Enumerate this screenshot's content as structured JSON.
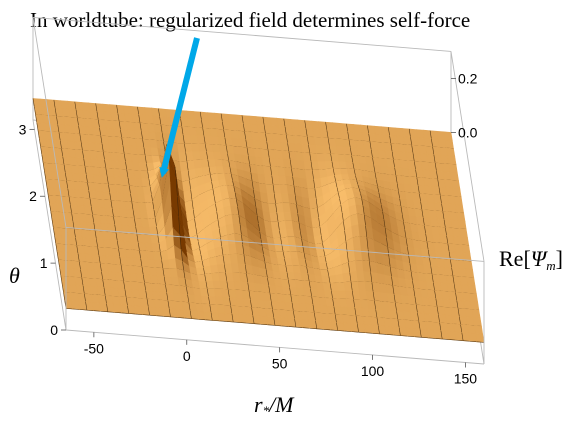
{
  "chart_data": {
    "type": "surface3d",
    "title": "",
    "annotation": "In worldtube: regularized field determines self-force",
    "xlabel": {
      "main": "r",
      "sub": "*",
      "rest": "/M"
    },
    "ylabel": "θ",
    "zlabel": {
      "prefix": "Re[",
      "main": "Ψ",
      "sub": "m",
      "suffix": "]"
    },
    "xlim": [
      -65,
      160
    ],
    "ylim": [
      0,
      3.14
    ],
    "zlim": [
      -0.08,
      0.3
    ],
    "x_ticks": [
      "-50",
      "0",
      "50",
      "100",
      "150"
    ],
    "y_ticks": [
      "0",
      "1",
      "2",
      "3"
    ],
    "z_ticks": [
      "0.0",
      "0.2"
    ],
    "x_tick_values": [
      -50,
      0,
      50,
      100,
      150
    ],
    "y_tick_values": [
      0,
      1,
      2,
      3
    ],
    "z_tick_values": [
      0.0,
      0.2
    ],
    "surface_features": {
      "worldtube_center_r": 0,
      "worldtube_center_theta": 1.57,
      "peak_value": 0.27,
      "outgoing_wave_crest_r": 100,
      "outgoing_wave_trough_r": 80,
      "wave_amplitude": 0.09
    },
    "colors": {
      "surface_light": "#ffc266",
      "surface_base": "#f29a1e",
      "surface_dark": "#7a3e00",
      "arrow": "#00a8e8",
      "box": "#b9b9b9"
    }
  }
}
